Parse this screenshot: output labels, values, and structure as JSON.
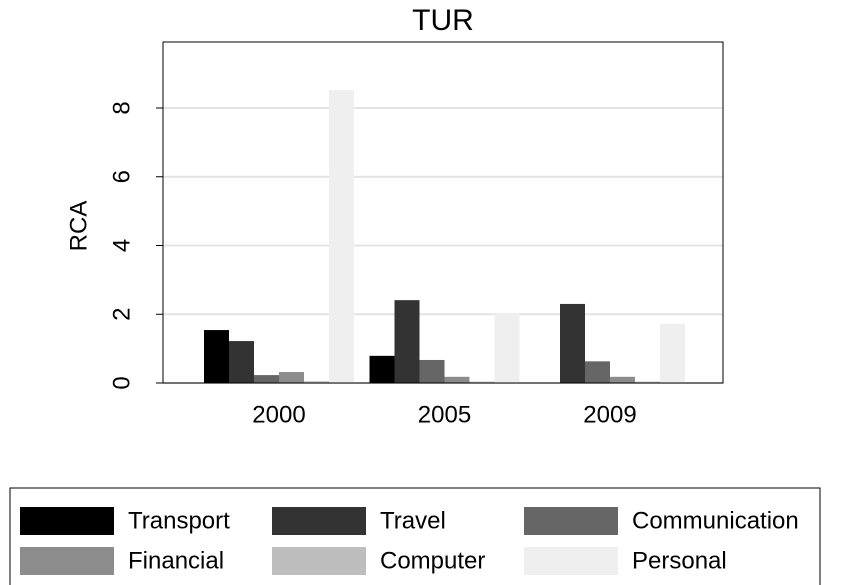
{
  "chart_data": {
    "type": "bar",
    "title": "TUR",
    "y_label": "RCA",
    "categories": [
      "2000",
      "2005",
      "2009"
    ],
    "series": [
      {
        "name": "Transport",
        "color": "#000000",
        "values": [
          1.54,
          0.79,
          null
        ]
      },
      {
        "name": "Travel",
        "color": "#333333",
        "values": [
          1.22,
          2.41,
          2.3
        ]
      },
      {
        "name": "Communication",
        "color": "#666666",
        "values": [
          0.23,
          0.67,
          0.63
        ]
      },
      {
        "name": "Financial",
        "color": "#8c8c8c",
        "values": [
          0.32,
          0.18,
          0.18
        ]
      },
      {
        "name": "Computer",
        "color": "#bdbdbd",
        "values": [
          0.05,
          0.04,
          0.04
        ]
      },
      {
        "name": "Personal",
        "color": "#efefef",
        "values": [
          8.52,
          2.04,
          1.72
        ]
      }
    ],
    "ylim": [
      0,
      9.92
    ],
    "yticks": [
      0,
      2,
      4,
      6,
      8
    ],
    "grid": true
  }
}
